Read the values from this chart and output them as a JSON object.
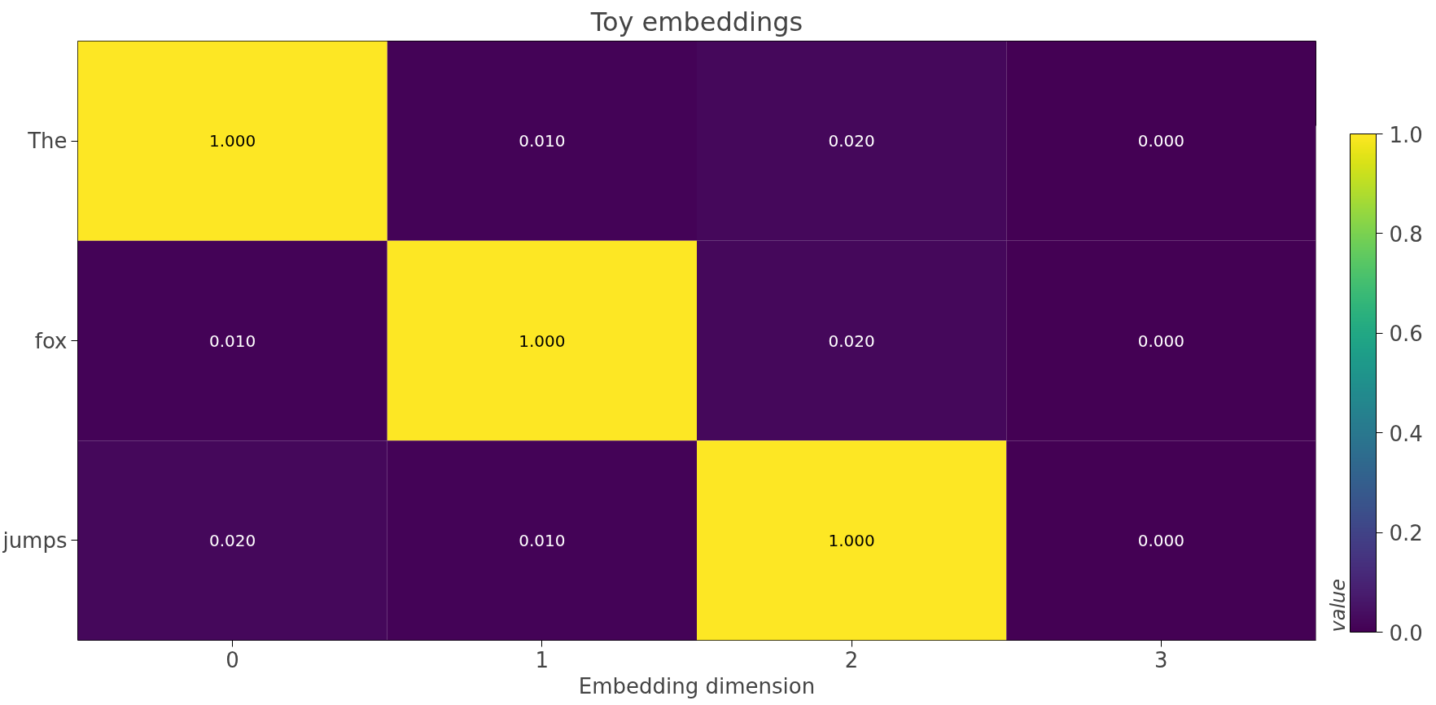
{
  "chart_data": {
    "type": "heatmap",
    "title": "Toy embeddings",
    "xlabel": "Embedding dimension",
    "clabel": "value",
    "categories": [
      "0",
      "1",
      "2",
      "3"
    ],
    "y_categories": [
      "The",
      "fox",
      "jumps"
    ],
    "cells": [
      [
        1.0,
        0.01,
        0.02,
        0.0
      ],
      [
        0.01,
        1.0,
        0.02,
        0.0
      ],
      [
        0.02,
        0.01,
        1.0,
        0.0
      ]
    ],
    "cell_labels": [
      [
        "1.000",
        "0.010",
        "0.020",
        "0.000"
      ],
      [
        "0.010",
        "1.000",
        "0.020",
        "0.000"
      ],
      [
        "0.020",
        "0.010",
        "1.000",
        "0.000"
      ]
    ],
    "clim": [
      0,
      1
    ],
    "cticks": [
      {
        "value": 0,
        "label": "0.0"
      },
      {
        "value": 0.2,
        "label": "0.2"
      },
      {
        "value": 0.4,
        "label": "0.4"
      },
      {
        "value": 0.6,
        "label": "0.6"
      },
      {
        "value": 0.8,
        "label": "0.8"
      },
      {
        "value": 1,
        "label": "1.0"
      }
    ]
  }
}
